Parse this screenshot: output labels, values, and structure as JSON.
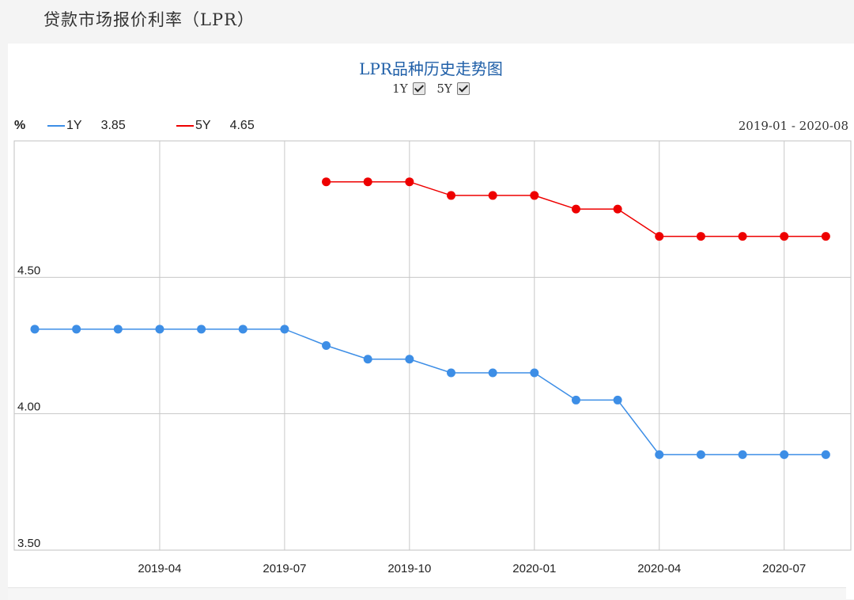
{
  "header": {
    "title": "贷款市场报价利率（LPR）"
  },
  "panel": {
    "chart_title": "LPR品种历史走势图",
    "toggles": [
      {
        "label": "1Y",
        "checked": true
      },
      {
        "label": "5Y",
        "checked": true
      }
    ],
    "unit": "%",
    "legend": [
      {
        "name": "1Y",
        "value": "3.85"
      },
      {
        "name": "5Y",
        "value": "4.65"
      }
    ],
    "date_range": "2019-01 - 2020-08"
  },
  "colors": {
    "one_year": "#3d8ee6",
    "five_year": "#ee0000",
    "grid": "#c8c8c8",
    "title": "#1f5fa8"
  },
  "chart_data": {
    "type": "line",
    "x": [
      "2019-01",
      "2019-02",
      "2019-03",
      "2019-04",
      "2019-05",
      "2019-06",
      "2019-07",
      "2019-08",
      "2019-09",
      "2019-10",
      "2019-11",
      "2019-12",
      "2020-01",
      "2020-02",
      "2020-03",
      "2020-04",
      "2020-05",
      "2020-06",
      "2020-07",
      "2020-08"
    ],
    "series": [
      {
        "name": "1Y",
        "values": [
          4.31,
          4.31,
          4.31,
          4.31,
          4.31,
          4.31,
          4.31,
          4.25,
          4.2,
          4.2,
          4.15,
          4.15,
          4.15,
          4.05,
          4.05,
          3.85,
          3.85,
          3.85,
          3.85,
          3.85
        ]
      },
      {
        "name": "5Y",
        "values": [
          null,
          null,
          null,
          null,
          null,
          null,
          null,
          4.85,
          4.85,
          4.85,
          4.8,
          4.8,
          4.8,
          4.75,
          4.75,
          4.65,
          4.65,
          4.65,
          4.65,
          4.65
        ]
      }
    ],
    "x_ticks": [
      "2019-04",
      "2019-07",
      "2019-10",
      "2020-01",
      "2020-04",
      "2020-07"
    ],
    "y_ticks": [
      "3.50",
      "4.00",
      "4.50"
    ],
    "ylim": [
      3.5,
      5.0
    ],
    "grid": true,
    "legend_position": "top-left"
  }
}
